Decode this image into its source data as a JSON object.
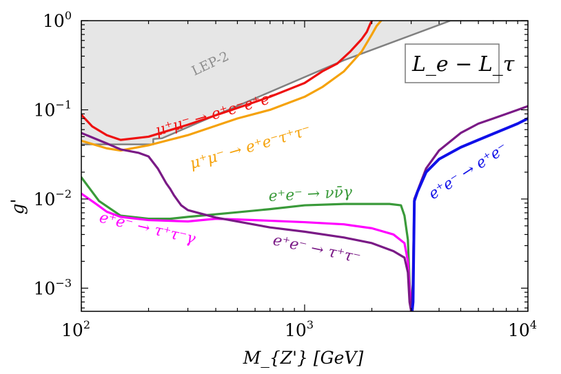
{
  "chart_data": {
    "type": "line",
    "title": "",
    "xlabel": "M_{Z'} [GeV]",
    "ylabel": "g'",
    "xscale": "log",
    "yscale": "log",
    "xlim": [
      100,
      10000
    ],
    "ylim": [
      0.00055,
      1.0
    ],
    "x_ticks": [
      {
        "base": "10",
        "exp": "2",
        "value": 100
      },
      {
        "base": "10",
        "exp": "3",
        "value": 1000
      },
      {
        "base": "10",
        "exp": "4",
        "value": 10000
      }
    ],
    "y_ticks": [
      {
        "base": "10",
        "exp": "0",
        "value": 1
      },
      {
        "base": "10",
        "exp": "−1",
        "value": 0.1
      },
      {
        "base": "10",
        "exp": "−2",
        "value": 0.01
      },
      {
        "base": "10",
        "exp": "−3",
        "value": 0.001
      }
    ],
    "inset_label": "L_e − L_τ",
    "series": [
      {
        "name": "LEP-2",
        "label": "LEP-2",
        "color": "#808080",
        "fill": "#e6e6e6",
        "x": [
          100,
          210,
          210,
          230,
          1500,
          4500,
          10000
        ],
        "y": [
          0.041,
          0.041,
          0.047,
          0.048,
          0.36,
          1.0,
          1.0
        ]
      },
      {
        "name": "mumu_to_eeee",
        "label": "μ⁺μ⁻ → e⁺e⁻e⁺e⁻",
        "color": "#ee1111",
        "x": [
          100,
          112,
          130,
          150,
          200,
          300,
          500,
          700,
          1000,
          1200,
          1400,
          1600,
          1800,
          1900,
          1960,
          2000
        ],
        "y": [
          0.088,
          0.065,
          0.052,
          0.046,
          0.05,
          0.068,
          0.105,
          0.14,
          0.2,
          0.27,
          0.33,
          0.45,
          0.62,
          0.75,
          0.9,
          1.0
        ]
      },
      {
        "name": "mumu_to_eetautau",
        "label": "μ⁺μ⁻ → e⁺e⁻τ⁺τ⁻",
        "color": "#f5a20b",
        "x": [
          100,
          130,
          150,
          200,
          300,
          500,
          700,
          1000,
          1200,
          1500,
          1800,
          2000,
          2100,
          2200
        ],
        "y": [
          0.045,
          0.037,
          0.035,
          0.04,
          0.052,
          0.08,
          0.1,
          0.14,
          0.18,
          0.27,
          0.45,
          0.7,
          0.87,
          1.0
        ]
      },
      {
        "name": "ee_to_nunugamma",
        "label": "e⁺e⁻ → νν̄γ",
        "color": "#3a9a3a",
        "x": [
          100,
          120,
          150,
          200,
          250,
          300,
          500,
          700,
          1000,
          1500,
          2000,
          2400,
          2700,
          2800,
          2900,
          2950,
          3000
        ],
        "y": [
          0.0175,
          0.0095,
          0.0065,
          0.006,
          0.006,
          0.0063,
          0.0071,
          0.0077,
          0.0085,
          0.0088,
          0.0088,
          0.0088,
          0.0085,
          0.0065,
          0.0035,
          0.0012,
          0.00055
        ]
      },
      {
        "name": "ee_to_tautaugamma",
        "label": "e⁺e⁻ → τ⁺τ⁻γ",
        "color": "#ff00ff",
        "x": [
          100,
          115,
          130,
          150,
          200,
          300,
          400,
          500,
          1000,
          1500,
          2000,
          2500,
          2800,
          2900,
          2950,
          3000
        ],
        "y": [
          0.0115,
          0.009,
          0.0072,
          0.0063,
          0.0058,
          0.0056,
          0.006,
          0.0059,
          0.0055,
          0.0052,
          0.0047,
          0.004,
          0.0032,
          0.002,
          0.001,
          0.00055
        ]
      },
      {
        "name": "ee_to_tautau",
        "label": "e⁺e⁻ → τ⁺τ⁻",
        "color": "#7a1a86",
        "x": [
          100,
          130,
          150,
          180,
          200,
          220,
          240,
          250,
          260,
          280,
          300,
          400,
          500,
          700,
          1000,
          1500,
          2000,
          2500,
          2800,
          2900,
          2950,
          3000,
          3050,
          3100,
          3500,
          4000,
          5000,
          6000,
          7000,
          8000,
          9000,
          10000
        ],
        "y": [
          0.055,
          0.042,
          0.036,
          0.033,
          0.03,
          0.022,
          0.015,
          0.013,
          0.011,
          0.0085,
          0.0075,
          0.0062,
          0.0056,
          0.0048,
          0.0043,
          0.0037,
          0.0032,
          0.0026,
          0.0022,
          0.0015,
          0.0007,
          0.00055,
          0.0011,
          0.01,
          0.022,
          0.035,
          0.055,
          0.07,
          0.08,
          0.09,
          0.1,
          0.11
        ]
      },
      {
        "name": "ee_to_ee",
        "label": "e⁺e⁻ → e⁺e⁻",
        "color": "#1010e8",
        "x": [
          3030,
          3060,
          3100,
          3200,
          3500,
          4000,
          5000,
          6000,
          7000,
          8000,
          9000,
          10000
        ],
        "y": [
          0.00055,
          0.0007,
          0.0095,
          0.012,
          0.02,
          0.028,
          0.038,
          0.046,
          0.054,
          0.062,
          0.07,
          0.08
        ]
      }
    ]
  }
}
